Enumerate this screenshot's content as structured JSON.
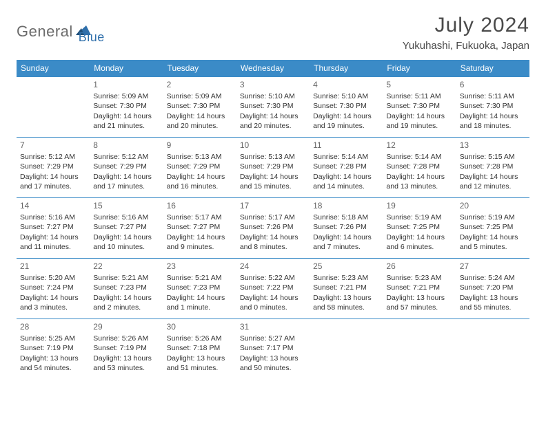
{
  "logo": {
    "text1": "General",
    "text2": "Blue"
  },
  "title": "July 2024",
  "location": "Yukuhashi, Fukuoka, Japan",
  "colors": {
    "header_bg": "#3b8bc7",
    "header_text": "#ffffff",
    "border": "#3b8bc7",
    "logo_gray": "#6b6b6b",
    "logo_blue": "#2f6fab",
    "text": "#333333"
  },
  "day_headers": [
    "Sunday",
    "Monday",
    "Tuesday",
    "Wednesday",
    "Thursday",
    "Friday",
    "Saturday"
  ],
  "weeks": [
    [
      null,
      {
        "n": "1",
        "sr": "Sunrise: 5:09 AM",
        "ss": "Sunset: 7:30 PM",
        "dl": "Daylight: 14 hours and 21 minutes."
      },
      {
        "n": "2",
        "sr": "Sunrise: 5:09 AM",
        "ss": "Sunset: 7:30 PM",
        "dl": "Daylight: 14 hours and 20 minutes."
      },
      {
        "n": "3",
        "sr": "Sunrise: 5:10 AM",
        "ss": "Sunset: 7:30 PM",
        "dl": "Daylight: 14 hours and 20 minutes."
      },
      {
        "n": "4",
        "sr": "Sunrise: 5:10 AM",
        "ss": "Sunset: 7:30 PM",
        "dl": "Daylight: 14 hours and 19 minutes."
      },
      {
        "n": "5",
        "sr": "Sunrise: 5:11 AM",
        "ss": "Sunset: 7:30 PM",
        "dl": "Daylight: 14 hours and 19 minutes."
      },
      {
        "n": "6",
        "sr": "Sunrise: 5:11 AM",
        "ss": "Sunset: 7:30 PM",
        "dl": "Daylight: 14 hours and 18 minutes."
      }
    ],
    [
      {
        "n": "7",
        "sr": "Sunrise: 5:12 AM",
        "ss": "Sunset: 7:29 PM",
        "dl": "Daylight: 14 hours and 17 minutes."
      },
      {
        "n": "8",
        "sr": "Sunrise: 5:12 AM",
        "ss": "Sunset: 7:29 PM",
        "dl": "Daylight: 14 hours and 17 minutes."
      },
      {
        "n": "9",
        "sr": "Sunrise: 5:13 AM",
        "ss": "Sunset: 7:29 PM",
        "dl": "Daylight: 14 hours and 16 minutes."
      },
      {
        "n": "10",
        "sr": "Sunrise: 5:13 AM",
        "ss": "Sunset: 7:29 PM",
        "dl": "Daylight: 14 hours and 15 minutes."
      },
      {
        "n": "11",
        "sr": "Sunrise: 5:14 AM",
        "ss": "Sunset: 7:28 PM",
        "dl": "Daylight: 14 hours and 14 minutes."
      },
      {
        "n": "12",
        "sr": "Sunrise: 5:14 AM",
        "ss": "Sunset: 7:28 PM",
        "dl": "Daylight: 14 hours and 13 minutes."
      },
      {
        "n": "13",
        "sr": "Sunrise: 5:15 AM",
        "ss": "Sunset: 7:28 PM",
        "dl": "Daylight: 14 hours and 12 minutes."
      }
    ],
    [
      {
        "n": "14",
        "sr": "Sunrise: 5:16 AM",
        "ss": "Sunset: 7:27 PM",
        "dl": "Daylight: 14 hours and 11 minutes."
      },
      {
        "n": "15",
        "sr": "Sunrise: 5:16 AM",
        "ss": "Sunset: 7:27 PM",
        "dl": "Daylight: 14 hours and 10 minutes."
      },
      {
        "n": "16",
        "sr": "Sunrise: 5:17 AM",
        "ss": "Sunset: 7:27 PM",
        "dl": "Daylight: 14 hours and 9 minutes."
      },
      {
        "n": "17",
        "sr": "Sunrise: 5:17 AM",
        "ss": "Sunset: 7:26 PM",
        "dl": "Daylight: 14 hours and 8 minutes."
      },
      {
        "n": "18",
        "sr": "Sunrise: 5:18 AM",
        "ss": "Sunset: 7:26 PM",
        "dl": "Daylight: 14 hours and 7 minutes."
      },
      {
        "n": "19",
        "sr": "Sunrise: 5:19 AM",
        "ss": "Sunset: 7:25 PM",
        "dl": "Daylight: 14 hours and 6 minutes."
      },
      {
        "n": "20",
        "sr": "Sunrise: 5:19 AM",
        "ss": "Sunset: 7:25 PM",
        "dl": "Daylight: 14 hours and 5 minutes."
      }
    ],
    [
      {
        "n": "21",
        "sr": "Sunrise: 5:20 AM",
        "ss": "Sunset: 7:24 PM",
        "dl": "Daylight: 14 hours and 3 minutes."
      },
      {
        "n": "22",
        "sr": "Sunrise: 5:21 AM",
        "ss": "Sunset: 7:23 PM",
        "dl": "Daylight: 14 hours and 2 minutes."
      },
      {
        "n": "23",
        "sr": "Sunrise: 5:21 AM",
        "ss": "Sunset: 7:23 PM",
        "dl": "Daylight: 14 hours and 1 minute."
      },
      {
        "n": "24",
        "sr": "Sunrise: 5:22 AM",
        "ss": "Sunset: 7:22 PM",
        "dl": "Daylight: 14 hours and 0 minutes."
      },
      {
        "n": "25",
        "sr": "Sunrise: 5:23 AM",
        "ss": "Sunset: 7:21 PM",
        "dl": "Daylight: 13 hours and 58 minutes."
      },
      {
        "n": "26",
        "sr": "Sunrise: 5:23 AM",
        "ss": "Sunset: 7:21 PM",
        "dl": "Daylight: 13 hours and 57 minutes."
      },
      {
        "n": "27",
        "sr": "Sunrise: 5:24 AM",
        "ss": "Sunset: 7:20 PM",
        "dl": "Daylight: 13 hours and 55 minutes."
      }
    ],
    [
      {
        "n": "28",
        "sr": "Sunrise: 5:25 AM",
        "ss": "Sunset: 7:19 PM",
        "dl": "Daylight: 13 hours and 54 minutes."
      },
      {
        "n": "29",
        "sr": "Sunrise: 5:26 AM",
        "ss": "Sunset: 7:19 PM",
        "dl": "Daylight: 13 hours and 53 minutes."
      },
      {
        "n": "30",
        "sr": "Sunrise: 5:26 AM",
        "ss": "Sunset: 7:18 PM",
        "dl": "Daylight: 13 hours and 51 minutes."
      },
      {
        "n": "31",
        "sr": "Sunrise: 5:27 AM",
        "ss": "Sunset: 7:17 PM",
        "dl": "Daylight: 13 hours and 50 minutes."
      },
      null,
      null,
      null
    ]
  ]
}
